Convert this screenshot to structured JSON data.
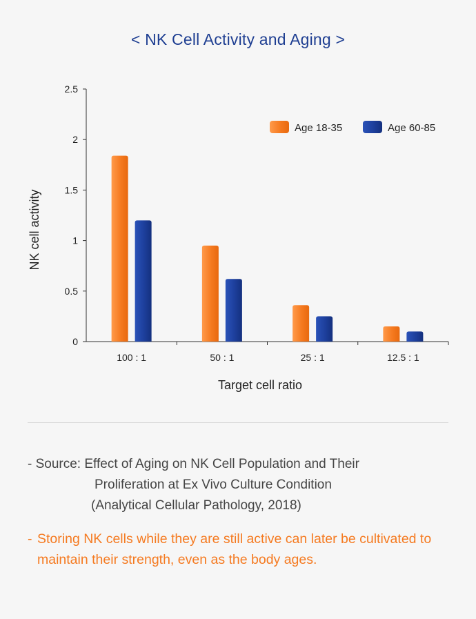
{
  "chart_data": {
    "type": "bar",
    "title": "< NK Cell Activity and Aging >",
    "xlabel": "Target cell ratio",
    "ylabel": "NK cell activity",
    "categories": [
      "100 : 1",
      "50 : 1",
      "25 : 1",
      "12.5 : 1"
    ],
    "series": [
      {
        "name": "Age 18-35",
        "values": [
          1.84,
          0.95,
          0.36,
          0.15
        ],
        "color": "#f57a20"
      },
      {
        "name": "Age 60-85",
        "values": [
          1.2,
          0.62,
          0.25,
          0.1
        ],
        "color": "#1d3f9c"
      }
    ],
    "ylim": [
      0,
      2.5
    ],
    "yticks": [
      0,
      0.5,
      1,
      1.5,
      2,
      2.5
    ],
    "ytick_labels": [
      "0",
      "0.5",
      "1",
      "1.5",
      "2",
      "2.5"
    ],
    "grid": false,
    "legend_position": "top-right"
  },
  "source": {
    "prefix": "- Source:",
    "line1": "Effect of Aging on NK Cell Population and Their",
    "line2": "Proliferation at Ex Vivo Culture Condition",
    "line3": "(Analytical Cellular Pathology, 2018)"
  },
  "note": {
    "dash": "-",
    "text": "Storing NK cells while they are still active can later be cultivated to maintain their strength, even as the body ages."
  }
}
